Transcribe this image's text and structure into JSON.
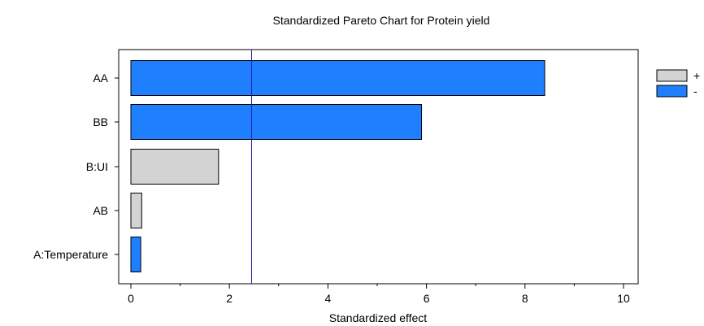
{
  "chart_data": {
    "type": "bar",
    "orientation": "horizontal",
    "title": "Standardized Pareto Chart for Protein yield",
    "xlabel": "Standardized effect",
    "ylabel": "",
    "xlim": [
      0,
      10
    ],
    "xticks": [
      0,
      2,
      4,
      6,
      8,
      10
    ],
    "categories": [
      "AA",
      "BB",
      "B:UI",
      "AB",
      "A:Temperature"
    ],
    "values": [
      8.4,
      5.9,
      1.78,
      0.22,
      0.2
    ],
    "signs": [
      "-",
      "-",
      "+",
      "+",
      "-"
    ],
    "reference_line": 2.45,
    "legend": {
      "position": "right",
      "items": [
        {
          "label": "+",
          "color": "#d3d3d3"
        },
        {
          "label": "-",
          "color": "#1e7fff"
        }
      ]
    },
    "colors": {
      "positive": "#d3d3d3",
      "negative": "#1e7fff",
      "reference": "#2020a0"
    },
    "grid": false
  }
}
